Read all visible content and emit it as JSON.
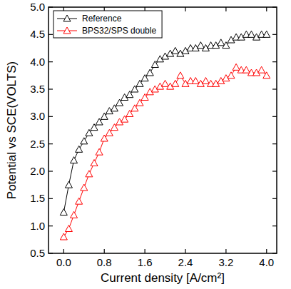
{
  "chart_data": {
    "type": "line",
    "x_label": "Current density [A/cm²]",
    "y_label": "Potential vs SCE(VOLTS)",
    "x": [
      0.0,
      0.1,
      0.2,
      0.3,
      0.4,
      0.5,
      0.6,
      0.7,
      0.8,
      0.9,
      1.0,
      1.1,
      1.2,
      1.3,
      1.4,
      1.5,
      1.6,
      1.7,
      1.8,
      1.9,
      2.0,
      2.1,
      2.2,
      2.3,
      2.4,
      2.5,
      2.6,
      2.7,
      2.8,
      2.9,
      3.0,
      3.1,
      3.2,
      3.3,
      3.4,
      3.5,
      3.6,
      3.7,
      3.8,
      3.9,
      4.0
    ],
    "series": [
      {
        "name": "Reference",
        "color": "#000000",
        "marker": "triangle",
        "line_style": "solid",
        "values": [
          1.25,
          1.75,
          2.2,
          2.4,
          2.55,
          2.7,
          2.8,
          2.9,
          3.0,
          3.1,
          3.15,
          3.25,
          3.35,
          3.4,
          3.5,
          3.6,
          3.7,
          3.8,
          3.95,
          4.05,
          4.1,
          4.15,
          4.2,
          4.15,
          4.2,
          4.25,
          4.25,
          4.3,
          4.25,
          4.3,
          4.3,
          4.35,
          4.3,
          4.4,
          4.45,
          4.45,
          4.5,
          4.5,
          4.45,
          4.5,
          4.5
        ]
      },
      {
        "name": "BPS32/SPS double",
        "color": "#ff0000",
        "marker": "triangle",
        "line_style": "solid",
        "values": [
          0.8,
          0.95,
          1.2,
          1.45,
          1.7,
          1.95,
          2.15,
          2.35,
          2.6,
          2.7,
          2.8,
          2.9,
          2.95,
          3.05,
          3.15,
          3.25,
          3.35,
          3.45,
          3.5,
          3.55,
          3.6,
          3.55,
          3.6,
          3.75,
          3.6,
          3.65,
          3.65,
          3.6,
          3.65,
          3.6,
          3.6,
          3.65,
          3.7,
          3.75,
          3.9,
          3.85,
          3.85,
          3.8,
          3.8,
          3.85,
          3.75
        ]
      }
    ],
    "xlim": [
      -0.3,
      4.2
    ],
    "ylim": [
      0.5,
      5.0
    ],
    "xticks": [
      {
        "value": 0,
        "label": "0.0"
      },
      0.8,
      1.6,
      2.4,
      3.2,
      {
        "value": 4,
        "label": "4.0"
      }
    ],
    "yticks": [
      0.5,
      {
        "value": 1,
        "label": "1.0"
      },
      1.5,
      {
        "value": 2,
        "label": "2.0"
      },
      2.5,
      {
        "value": 3,
        "label": "3.0"
      },
      3.5,
      {
        "value": 4,
        "label": "4.0"
      },
      4.5,
      {
        "value": 5,
        "label": "5.0"
      }
    ],
    "legend": "top-left",
    "grid": false
  }
}
